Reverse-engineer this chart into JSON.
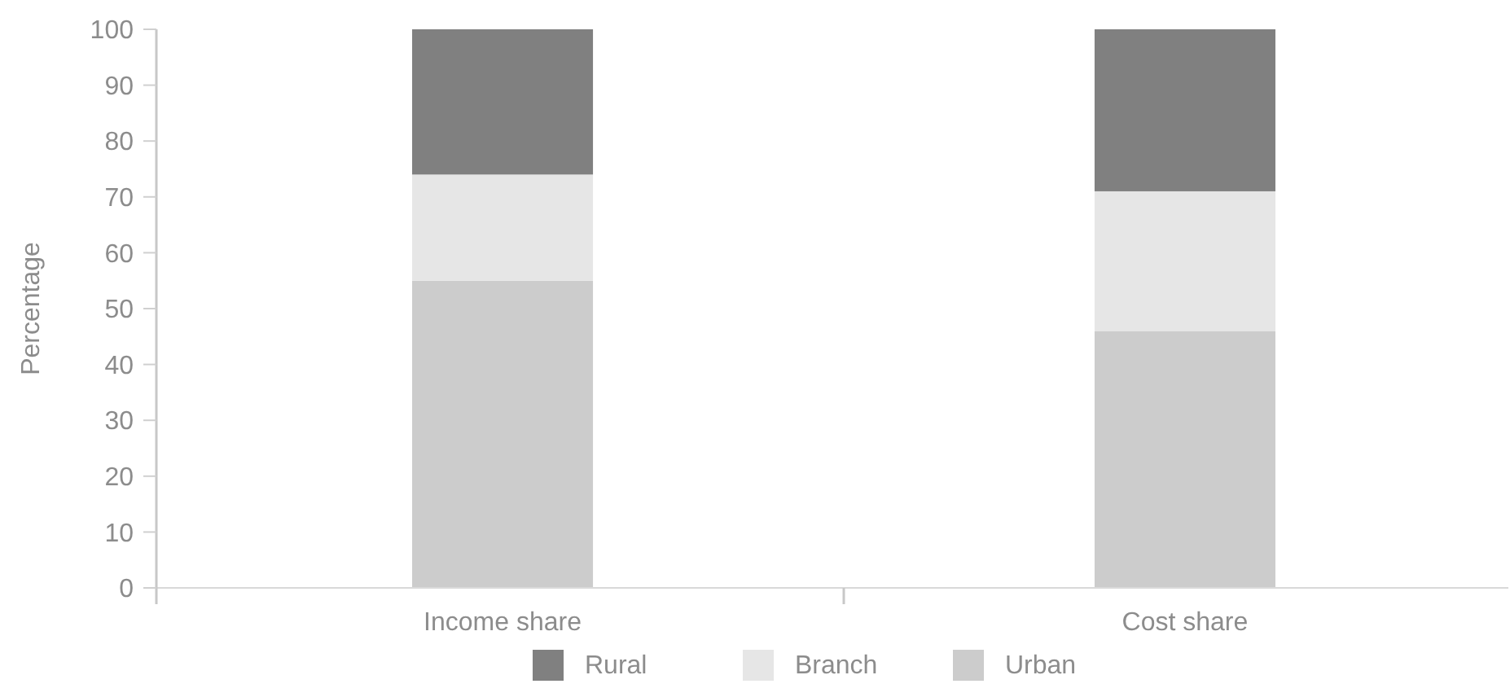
{
  "chart_data": {
    "type": "bar",
    "stacked": true,
    "ylabel": "Percentage",
    "categories": [
      "Income share",
      "Cost share"
    ],
    "series": [
      {
        "name": "Urban",
        "color": "#cccccc",
        "values": [
          55,
          46
        ]
      },
      {
        "name": "Branch",
        "color": "#e6e6e6",
        "values": [
          19,
          25
        ]
      },
      {
        "name": "Rural",
        "color": "#808080",
        "values": [
          26,
          29
        ]
      }
    ],
    "ylim": [
      0,
      100
    ],
    "yticks": [
      0,
      10,
      20,
      30,
      40,
      50,
      60,
      70,
      80,
      90,
      100
    ],
    "grid": false,
    "legend": "bottom"
  }
}
